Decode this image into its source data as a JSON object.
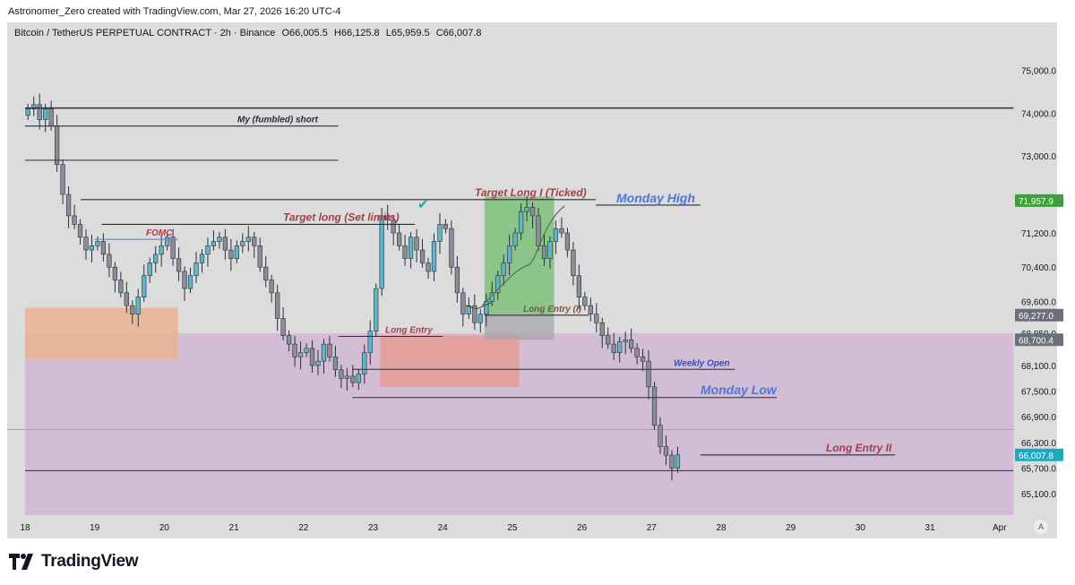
{
  "header": {
    "attribution": "Astronomer_Zero created with TradingView.com, Mar 27, 2026 16:20 UTC-4"
  },
  "symbol_info": {
    "name": "Bitcoin / TetherUS PERPETUAL CONTRACT · 2h · Binance",
    "open": "O66,005.5",
    "high": "H66,125.8",
    "low": "L65,959.5",
    "close": "C66,007.8"
  },
  "logo": {
    "text": "TradingView"
  },
  "axis_button": "A",
  "colors": {
    "up": "#5fb6c6",
    "down": "#8a8f97",
    "purple_zone": "#d1b8d4",
    "green_box": "#7fbf7b",
    "red_box": "#e79a8f",
    "orange_box": "#e9b493"
  },
  "chart_data": {
    "type": "candlestick",
    "title": "Bitcoin / TetherUS PERPETUAL CONTRACT · 2h · Binance",
    "ylim": [
      64600,
      75600
    ],
    "y_ticks": [
      {
        "value": 75000,
        "label": "75,000.0"
      },
      {
        "value": 74000,
        "label": "74,000.0"
      },
      {
        "value": 73000,
        "label": "73,000.0"
      },
      {
        "value": 71200,
        "label": "71,200.0"
      },
      {
        "value": 70400,
        "label": "70,400.0"
      },
      {
        "value": 69600,
        "label": "69,600.0"
      },
      {
        "value": 68850,
        "label": "68,850.0"
      },
      {
        "value": 68100,
        "label": "68,100.0"
      },
      {
        "value": 67500,
        "label": "67,500.0"
      },
      {
        "value": 66900,
        "label": "66,900.0"
      },
      {
        "value": 66300,
        "label": "66,300.0"
      },
      {
        "value": 65700,
        "label": "65,700.0"
      },
      {
        "value": 65100,
        "label": "65,100.0"
      }
    ],
    "price_badges": [
      {
        "value": 71957.9,
        "label": "71,957.9",
        "color": "#3f9f3c"
      },
      {
        "value": 69277.0,
        "label": "69,277.0",
        "color": "#6b6f7a"
      },
      {
        "value": 68700.4,
        "label": "68,700.4",
        "color": "#6b6f7a"
      },
      {
        "value": 66007.8,
        "label": "66,007.8",
        "color": "#22a7bf"
      }
    ],
    "x_labels": [
      {
        "day": 0,
        "label": "18"
      },
      {
        "day": 1,
        "label": "19"
      },
      {
        "day": 2,
        "label": "20"
      },
      {
        "day": 3,
        "label": "21"
      },
      {
        "day": 4,
        "label": "22"
      },
      {
        "day": 5,
        "label": "23"
      },
      {
        "day": 6,
        "label": "24"
      },
      {
        "day": 7,
        "label": "25"
      },
      {
        "day": 8,
        "label": "26"
      },
      {
        "day": 9,
        "label": "27"
      },
      {
        "day": 10,
        "label": "28"
      },
      {
        "day": 11,
        "label": "29"
      },
      {
        "day": 12,
        "label": "30"
      },
      {
        "day": 13,
        "label": "31"
      },
      {
        "day": 14,
        "label": "Apr"
      }
    ],
    "candles_per_day": 12,
    "closes": [
      74100,
      74200,
      73850,
      74100,
      73700,
      72800,
      72100,
      71600,
      71400,
      71100,
      70800,
      70900,
      71000,
      70700,
      70400,
      70100,
      69800,
      69500,
      69300,
      69700,
      70200,
      70500,
      70700,
      70900,
      71100,
      70600,
      70300,
      69900,
      70200,
      70500,
      70700,
      70900,
      71000,
      71100,
      70800,
      70600,
      70900,
      71000,
      71100,
      70900,
      70400,
      70100,
      69800,
      69200,
      68800,
      68600,
      68300,
      68400,
      68500,
      68100,
      68200,
      68600,
      68300,
      68000,
      67800,
      67850,
      67700,
      67900,
      68400,
      68900,
      69900,
      71600,
      71500,
      71200,
      70900,
      70600,
      71100,
      70800,
      70500,
      70300,
      71000,
      71400,
      71300,
      70400,
      69800,
      69300,
      69500,
      69100,
      69300,
      69600,
      69800,
      70200,
      70500,
      70900,
      71200,
      71700,
      71800,
      71600,
      70900,
      70600,
      71000,
      71300,
      71200,
      70800,
      70200,
      69700,
      69500,
      69300,
      69100,
      68800,
      68600,
      68400,
      68650,
      68700,
      68500,
      68300,
      68200,
      67600,
      66700,
      66200,
      66000,
      65700,
      66008
    ],
    "levels": [
      {
        "price": 74120,
        "x0_day": 0.0,
        "x1_day": 14.2,
        "label": ""
      },
      {
        "price": 73700,
        "x0_day": 0.0,
        "x1_day": 4.5,
        "label": "My (fumbled) short"
      },
      {
        "price": 72900,
        "x0_day": 0.0,
        "x1_day": 4.5,
        "label": ""
      },
      {
        "price": 71980,
        "x0_day": 0.8,
        "x1_day": 8.2,
        "label": "Target Long I (Ticked)"
      },
      {
        "price": 71850,
        "x0_day": 8.2,
        "x1_day": 9.7,
        "label": "Monday High"
      },
      {
        "price": 71400,
        "x0_day": 1.1,
        "x1_day": 5.6,
        "label": "Target long (Set limits)"
      },
      {
        "price": 71050,
        "x0_day": 1.0,
        "x1_day": 2.2,
        "label": "FOMC"
      },
      {
        "price": 69277,
        "x0_day": 6.6,
        "x1_day": 8.1,
        "label": "Long Entry (I)"
      },
      {
        "price": 68780,
        "x0_day": 4.5,
        "x1_day": 6.0,
        "label": "Long Entry"
      },
      {
        "price": 68010,
        "x0_day": 4.7,
        "x1_day": 10.2,
        "label": "Weekly Open"
      },
      {
        "price": 67350,
        "x0_day": 4.7,
        "x1_day": 10.8,
        "label": "Monday Low"
      },
      {
        "price": 66008,
        "x0_day": 9.7,
        "x1_day": 12.5,
        "label": "Long Entry II"
      },
      {
        "price": 65640,
        "x0_day": 0.0,
        "x1_day": 14.2,
        "label": ""
      }
    ],
    "zones": [
      {
        "kind": "purple",
        "top": 68850,
        "bottom": 64600,
        "x0_day": 0.0,
        "x1_day": 14.2
      },
      {
        "kind": "orange",
        "top": 69450,
        "bottom": 68250,
        "x0_day": 0.0,
        "x1_day": 2.2
      },
      {
        "kind": "red",
        "top": 68800,
        "bottom": 67600,
        "x0_day": 5.1,
        "x1_day": 7.1
      },
      {
        "kind": "green",
        "top": 72050,
        "bottom": 69300,
        "x0_day": 6.6,
        "x1_day": 7.6
      },
      {
        "kind": "gray",
        "top": 69300,
        "bottom": 68700,
        "x0_day": 6.6,
        "x1_day": 7.6
      }
    ],
    "annotations": {
      "check": "✔"
    }
  }
}
